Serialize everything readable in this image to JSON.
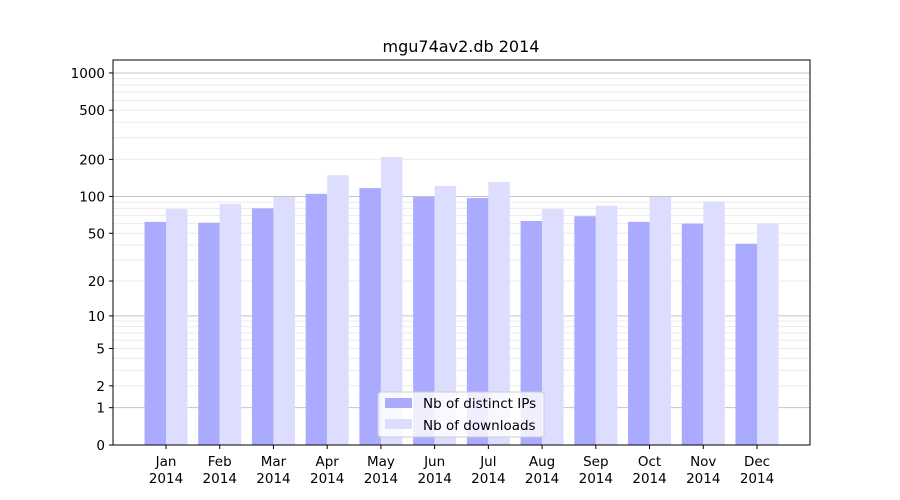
{
  "chart_data": {
    "type": "bar",
    "title": "mgu74av2.db 2014",
    "xlabel": "",
    "ylabel": "",
    "yscale": "symlog (log10(v+1))",
    "ylim": [
      0,
      1270
    ],
    "yticks": [
      0,
      1,
      2,
      5,
      10,
      20,
      50,
      100,
      200,
      500,
      1000
    ],
    "ytick_labels": [
      "0",
      "1",
      "2",
      "5",
      "10",
      "20",
      "50",
      "100",
      "200",
      "500",
      "1000"
    ],
    "categories": [
      [
        "Jan",
        "2014"
      ],
      [
        "Feb",
        "2014"
      ],
      [
        "Mar",
        "2014"
      ],
      [
        "Apr",
        "2014"
      ],
      [
        "May",
        "2014"
      ],
      [
        "Jun",
        "2014"
      ],
      [
        "Jul",
        "2014"
      ],
      [
        "Aug",
        "2014"
      ],
      [
        "Sep",
        "2014"
      ],
      [
        "Oct",
        "2014"
      ],
      [
        "Nov",
        "2014"
      ],
      [
        "Dec",
        "2014"
      ]
    ],
    "series": [
      {
        "name": "Nb of distinct IPs",
        "color": "#aaaaff",
        "values": [
          62,
          61,
          80,
          105,
          117,
          99,
          97,
          63,
          69,
          62,
          60,
          41
        ]
      },
      {
        "name": "Nb of downloads",
        "color": "#ddddff",
        "values": [
          79,
          87,
          99,
          149,
          209,
          122,
          131,
          79,
          84,
          99,
          91,
          60
        ]
      }
    ],
    "grid": true,
    "legend_position": "lower-center"
  }
}
